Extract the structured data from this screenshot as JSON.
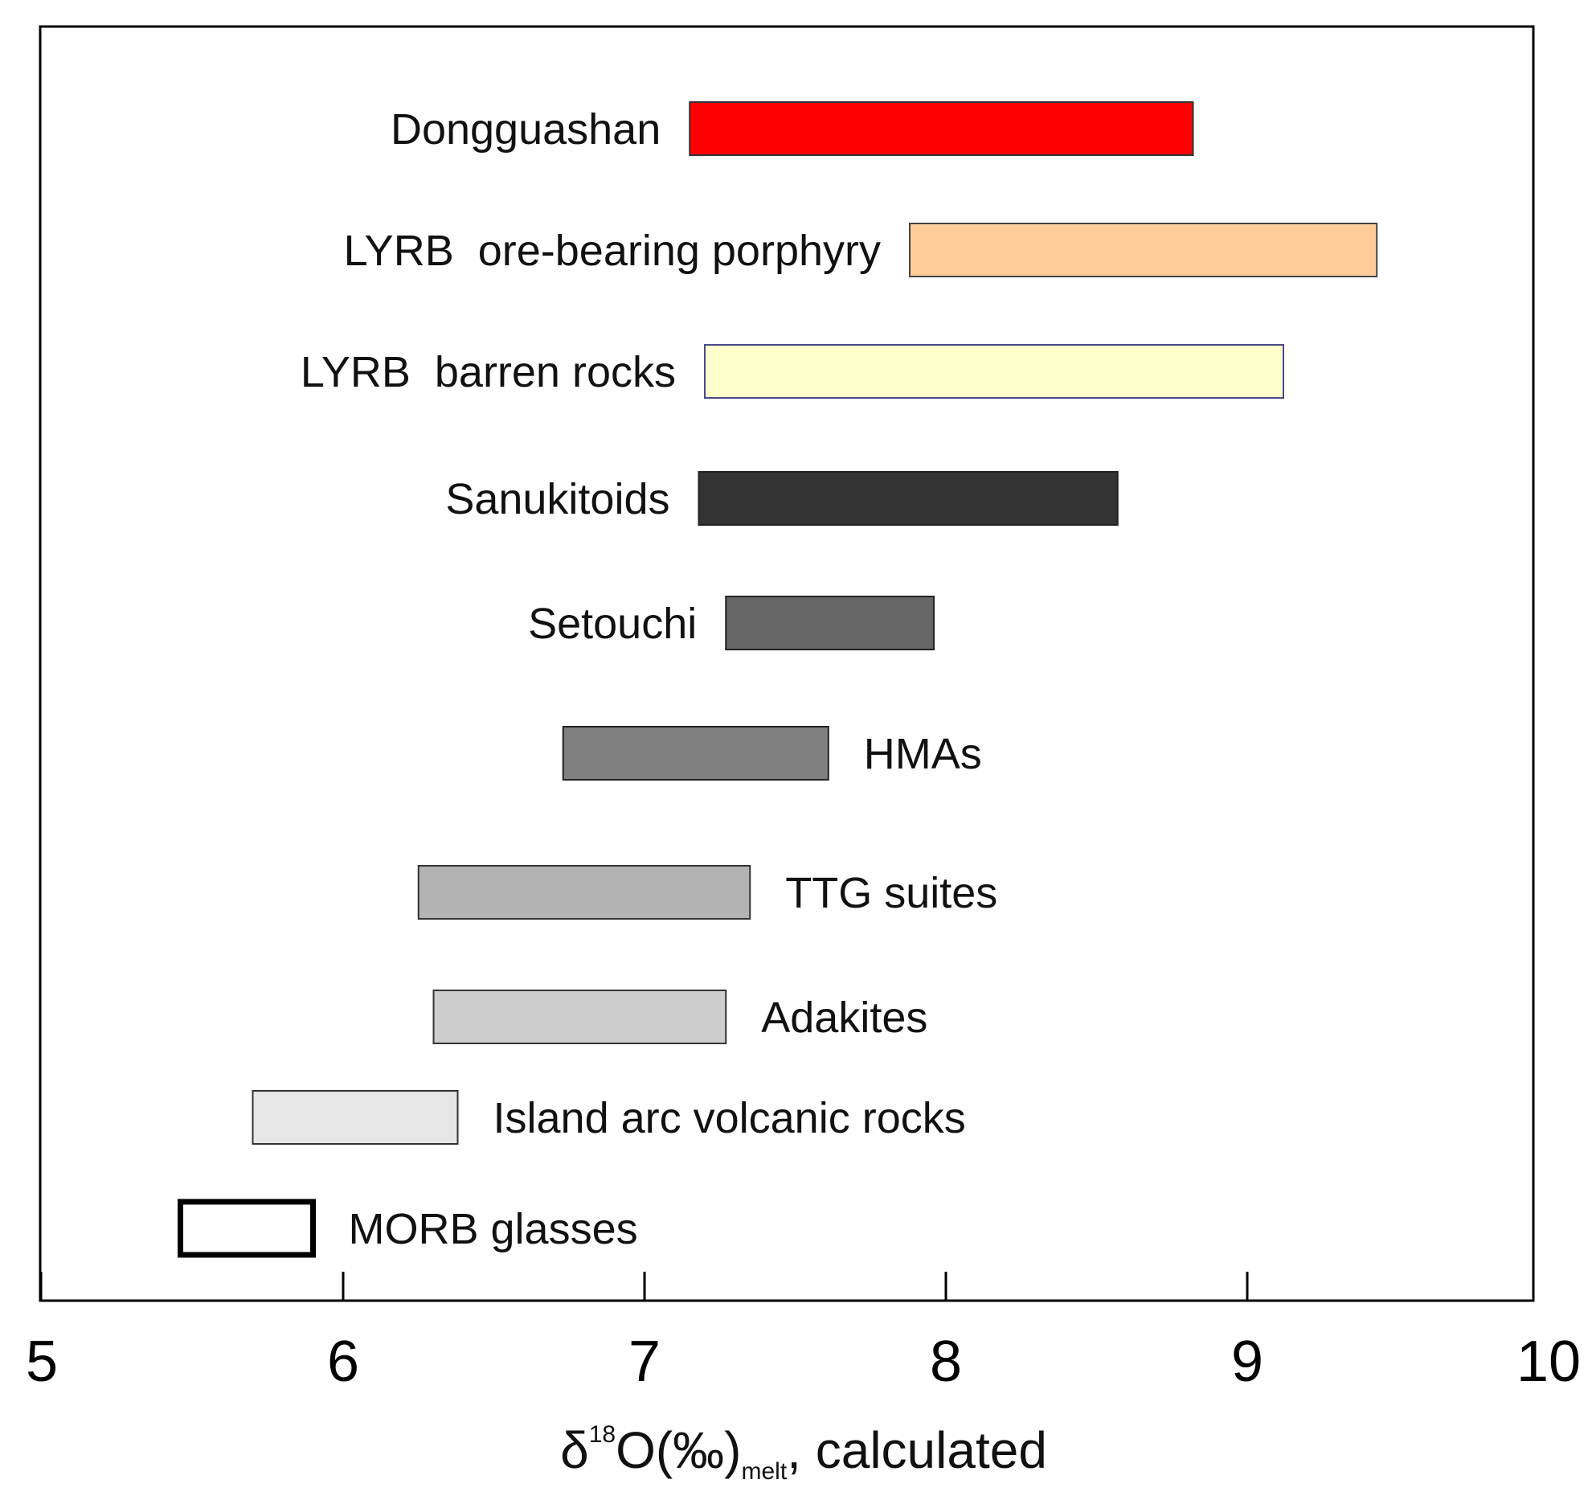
{
  "chart_data": {
    "type": "range-bar",
    "title": "",
    "xlabel": {
      "base": "δ",
      "sup": "18",
      "main": "O(‰)",
      "sub": "melt",
      "suffix": ", calculated"
    },
    "ylabel": "",
    "xlim": [
      5,
      10
    ],
    "xticks": [
      5,
      6,
      7,
      8,
      9,
      10
    ],
    "xtick_labels": [
      "5",
      "6",
      "7",
      "8",
      "9",
      "10"
    ],
    "grid": false,
    "series": [
      {
        "name": "Dongguashan",
        "min": 7.15,
        "max": 8.82,
        "fill": "#ff0000",
        "stroke": "#333333",
        "label_side": "left"
      },
      {
        "name": "LYRB  ore-bearing porphyry",
        "min": 7.88,
        "max": 9.43,
        "fill": "#ffcc99",
        "stroke": "#444444",
        "label_side": "left"
      },
      {
        "name": "LYRB  barren rocks",
        "min": 7.2,
        "max": 9.12,
        "fill": "#ffffcc",
        "stroke": "#4a4a8a",
        "label_side": "left"
      },
      {
        "name": "Sanukitoids",
        "min": 7.18,
        "max": 8.57,
        "fill": "#333333",
        "stroke": "#222222",
        "label_side": "left"
      },
      {
        "name": "Setouchi",
        "min": 7.27,
        "max": 7.96,
        "fill": "#666666",
        "stroke": "#222222",
        "label_side": "left"
      },
      {
        "name": "HMAs",
        "min": 6.73,
        "max": 7.61,
        "fill": "#808080",
        "stroke": "#222222",
        "label_side": "right"
      },
      {
        "name": "TTG suites",
        "min": 6.25,
        "max": 7.35,
        "fill": "#b3b3b3",
        "stroke": "#333333",
        "label_side": "right"
      },
      {
        "name": "Adakites",
        "min": 6.3,
        "max": 7.27,
        "fill": "#cccccc",
        "stroke": "#333333",
        "label_side": "right"
      },
      {
        "name": "Island arc volcanic rocks",
        "min": 5.7,
        "max": 6.38,
        "fill": "#e6e6e6",
        "stroke": "#333333",
        "label_side": "right"
      },
      {
        "name": "MORB glasses",
        "min": 5.46,
        "max": 5.9,
        "fill": "#ffffff",
        "stroke": "#000000",
        "label_side": "right",
        "bold_outline": true
      }
    ]
  }
}
